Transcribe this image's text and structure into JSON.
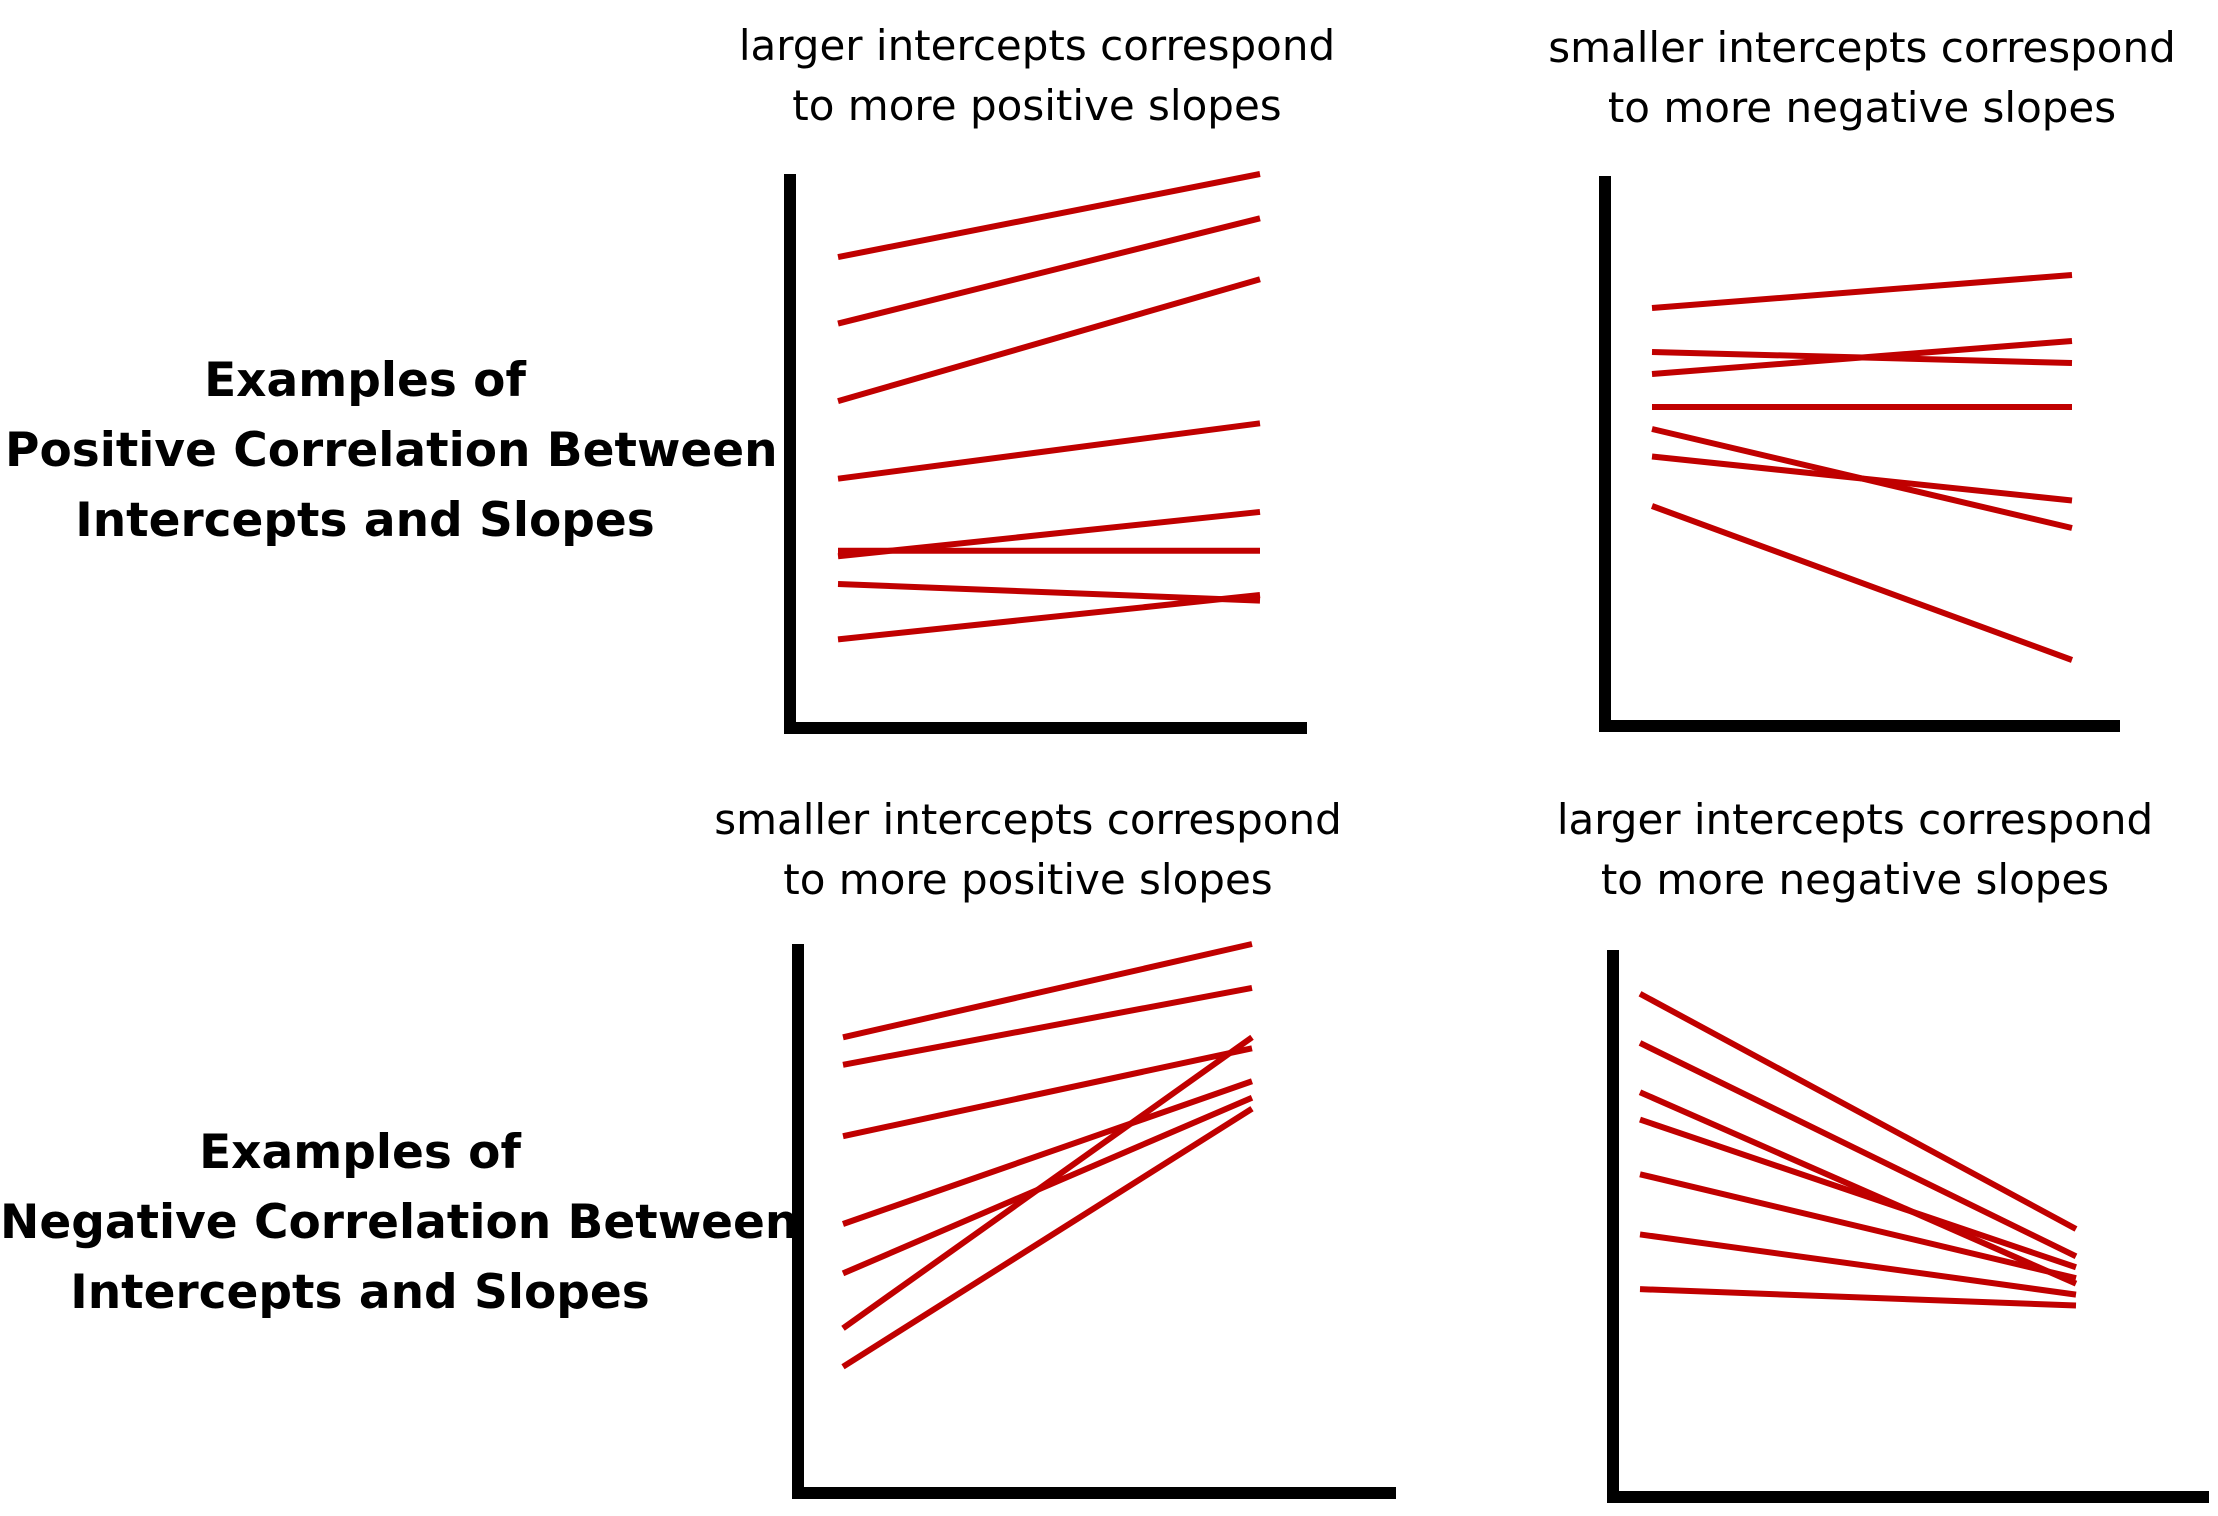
{
  "rows": [
    {
      "label_lines": [
        "Examples of",
        "Positive Correlation Between",
        "Intercepts and Slopes"
      ]
    },
    {
      "label_lines": [
        "Examples of",
        "Negative Correlation Between",
        "Intercepts and Slopes"
      ]
    }
  ],
  "panels": [
    {
      "caption_lines": [
        "larger intercepts correspond",
        "to more positive slopes"
      ],
      "line_color": "#c00000",
      "axis_color": "#000000",
      "lines": [
        {
          "start": 0.85,
          "end": 1.0
        },
        {
          "start": 0.73,
          "end": 0.92
        },
        {
          "start": 0.59,
          "end": 0.81
        },
        {
          "start": 0.45,
          "end": 0.55
        },
        {
          "start": 0.31,
          "end": 0.39
        },
        {
          "start": 0.32,
          "end": 0.32
        },
        {
          "start": 0.26,
          "end": 0.23
        },
        {
          "start": 0.16,
          "end": 0.24
        }
      ]
    },
    {
      "caption_lines": [
        "smaller intercepts correspond",
        "to more negative slopes"
      ],
      "line_color": "#c00000",
      "axis_color": "#000000",
      "lines": [
        {
          "start": 0.76,
          "end": 0.82
        },
        {
          "start": 0.68,
          "end": 0.66
        },
        {
          "start": 0.64,
          "end": 0.7
        },
        {
          "start": 0.58,
          "end": 0.58
        },
        {
          "start": 0.54,
          "end": 0.36
        },
        {
          "start": 0.49,
          "end": 0.41
        },
        {
          "start": 0.4,
          "end": 0.12
        }
      ]
    },
    {
      "caption_lines": [
        "smaller intercepts correspond",
        "to more positive slopes"
      ],
      "line_color": "#c00000",
      "axis_color": "#000000",
      "lines": [
        {
          "start": 0.83,
          "end": 1.0
        },
        {
          "start": 0.78,
          "end": 0.92
        },
        {
          "start": 0.65,
          "end": 0.81
        },
        {
          "start": 0.49,
          "end": 0.75
        },
        {
          "start": 0.4,
          "end": 0.72
        },
        {
          "start": 0.3,
          "end": 0.83
        },
        {
          "start": 0.23,
          "end": 0.7
        }
      ]
    },
    {
      "caption_lines": [
        "larger intercepts correspond",
        "to more negative slopes"
      ],
      "line_color": "#c00000",
      "axis_color": "#000000",
      "lines": [
        {
          "start": 0.92,
          "end": 0.49
        },
        {
          "start": 0.83,
          "end": 0.44
        },
        {
          "start": 0.74,
          "end": 0.39
        },
        {
          "start": 0.69,
          "end": 0.42
        },
        {
          "start": 0.59,
          "end": 0.4
        },
        {
          "start": 0.48,
          "end": 0.37
        },
        {
          "start": 0.38,
          "end": 0.35
        }
      ]
    }
  ]
}
